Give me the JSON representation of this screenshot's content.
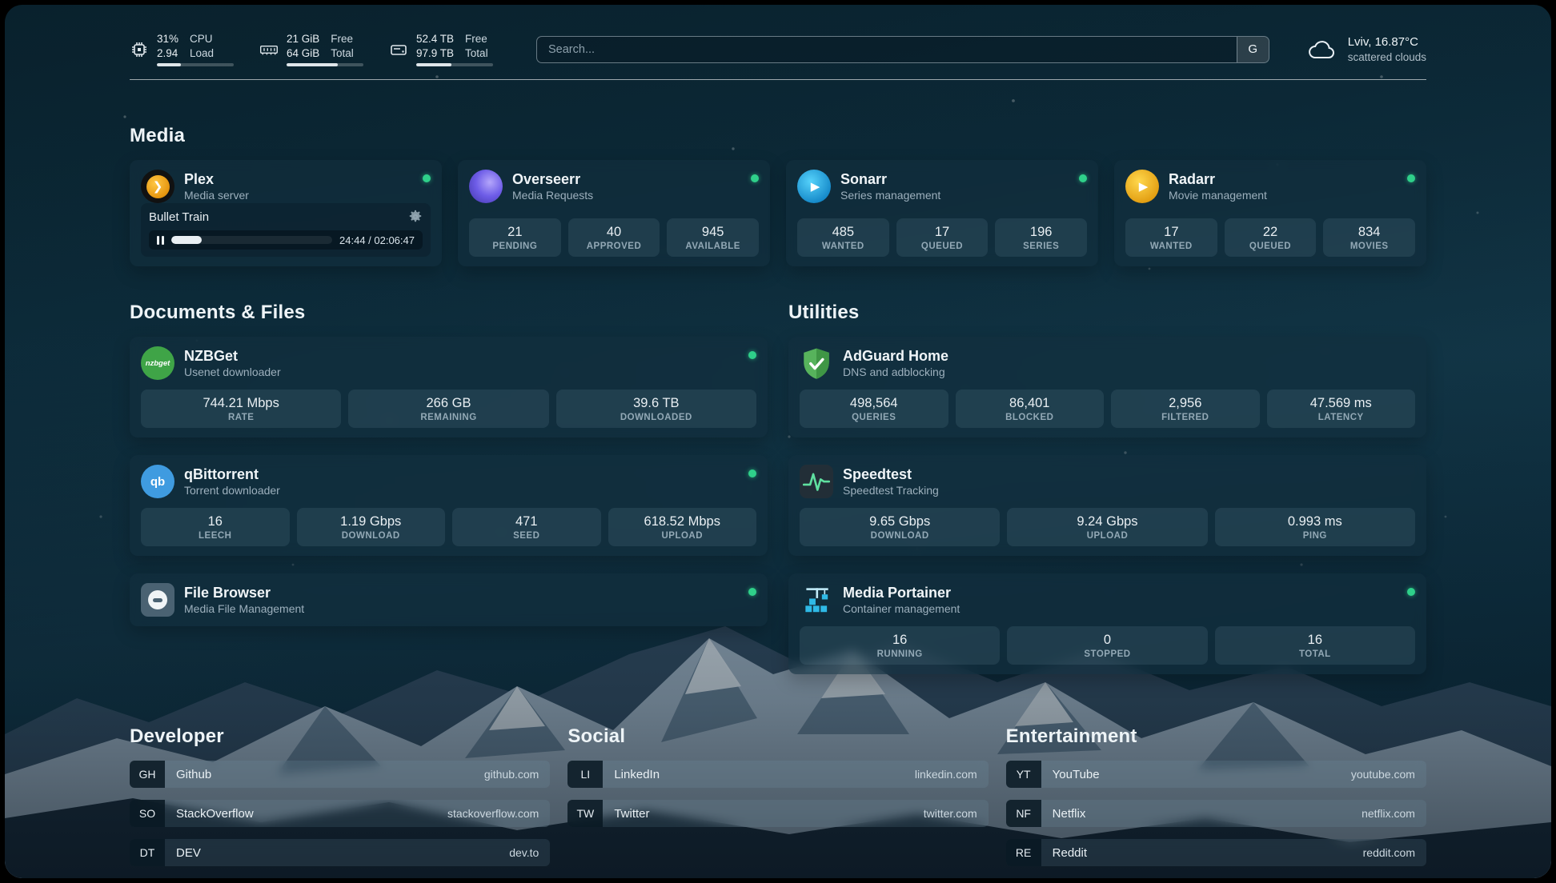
{
  "topbar": {
    "cpu": {
      "usage": "31%",
      "load": "2.94",
      "usage_label": "CPU",
      "load_label": "Load",
      "bar_percent": 31
    },
    "memory": {
      "free": "21 GiB",
      "total": "64 GiB",
      "free_label": "Free",
      "total_label": "Total",
      "bar_percent": 67
    },
    "disk": {
      "free": "52.4 TB",
      "total": "97.9 TB",
      "free_label": "Free",
      "total_label": "Total",
      "bar_percent": 46
    },
    "search": {
      "placeholder": "Search...",
      "button": "G"
    },
    "weather": {
      "location": "Lviv, 16.87°C",
      "condition": "scattered clouds"
    }
  },
  "media": {
    "title": "Media",
    "plex": {
      "name": "Plex",
      "desc": "Media server",
      "online": true,
      "now_playing": "Bullet Train",
      "time": "24:44 / 02:06:47",
      "progress_percent": 19
    },
    "overseerr": {
      "name": "Overseerr",
      "desc": "Media Requests",
      "online": true,
      "stats": [
        {
          "value": "21",
          "label": "PENDING"
        },
        {
          "value": "40",
          "label": "APPROVED"
        },
        {
          "value": "945",
          "label": "AVAILABLE"
        }
      ]
    },
    "sonarr": {
      "name": "Sonarr",
      "desc": "Series management",
      "online": true,
      "stats": [
        {
          "value": "485",
          "label": "WANTED"
        },
        {
          "value": "17",
          "label": "QUEUED"
        },
        {
          "value": "196",
          "label": "SERIES"
        }
      ]
    },
    "radarr": {
      "name": "Radarr",
      "desc": "Movie management",
      "online": true,
      "stats": [
        {
          "value": "17",
          "label": "WANTED"
        },
        {
          "value": "22",
          "label": "QUEUED"
        },
        {
          "value": "834",
          "label": "MOVIES"
        }
      ]
    }
  },
  "documents": {
    "title": "Documents & Files",
    "nzbget": {
      "name": "NZBGet",
      "desc": "Usenet downloader",
      "icon_label": "nzbget",
      "online": true,
      "stats": [
        {
          "value": "744.21 Mbps",
          "label": "RATE"
        },
        {
          "value": "266 GB",
          "label": "REMAINING"
        },
        {
          "value": "39.6 TB",
          "label": "DOWNLOADED"
        }
      ]
    },
    "qbittorrent": {
      "name": "qBittorrent",
      "desc": "Torrent downloader",
      "icon_label": "qb",
      "online": true,
      "stats": [
        {
          "value": "16",
          "label": "LEECH"
        },
        {
          "value": "1.19 Gbps",
          "label": "DOWNLOAD"
        },
        {
          "value": "471",
          "label": "SEED"
        },
        {
          "value": "618.52 Mbps",
          "label": "UPLOAD"
        }
      ]
    },
    "filebrowser": {
      "name": "File Browser",
      "desc": "Media File Management",
      "online": true
    }
  },
  "utilities": {
    "title": "Utilities",
    "adguard": {
      "name": "AdGuard Home",
      "desc": "DNS and adblocking",
      "stats": [
        {
          "value": "498,564",
          "label": "QUERIES"
        },
        {
          "value": "86,401",
          "label": "BLOCKED"
        },
        {
          "value": "2,956",
          "label": "FILTERED"
        },
        {
          "value": "47.569 ms",
          "label": "LATENCY"
        }
      ]
    },
    "speedtest": {
      "name": "Speedtest",
      "desc": "Speedtest Tracking",
      "stats": [
        {
          "value": "9.65 Gbps",
          "label": "DOWNLOAD"
        },
        {
          "value": "9.24 Gbps",
          "label": "UPLOAD"
        },
        {
          "value": "0.993 ms",
          "label": "PING"
        }
      ]
    },
    "portainer": {
      "name": "Media Portainer",
      "desc": "Container management",
      "online": true,
      "stats": [
        {
          "value": "16",
          "label": "RUNNING"
        },
        {
          "value": "0",
          "label": "STOPPED"
        },
        {
          "value": "16",
          "label": "TOTAL"
        }
      ]
    }
  },
  "bookmarks": {
    "developer": {
      "title": "Developer",
      "items": [
        {
          "abbr": "GH",
          "name": "Github",
          "url": "github.com"
        },
        {
          "abbr": "SO",
          "name": "StackOverflow",
          "url": "stackoverflow.com"
        },
        {
          "abbr": "DT",
          "name": "DEV",
          "url": "dev.to"
        }
      ]
    },
    "social": {
      "title": "Social",
      "items": [
        {
          "abbr": "LI",
          "name": "LinkedIn",
          "url": "linkedin.com"
        },
        {
          "abbr": "TW",
          "name": "Twitter",
          "url": "twitter.com"
        }
      ]
    },
    "entertainment": {
      "title": "Entertainment",
      "items": [
        {
          "abbr": "YT",
          "name": "YouTube",
          "url": "youtube.com"
        },
        {
          "abbr": "NF",
          "name": "Netflix",
          "url": "netflix.com"
        },
        {
          "abbr": "RE",
          "name": "Reddit",
          "url": "reddit.com"
        }
      ]
    }
  },
  "colors": {
    "status_online": "#2fd08a",
    "accent_plex": "#e5a00d",
    "background": "#0d2c3b"
  }
}
